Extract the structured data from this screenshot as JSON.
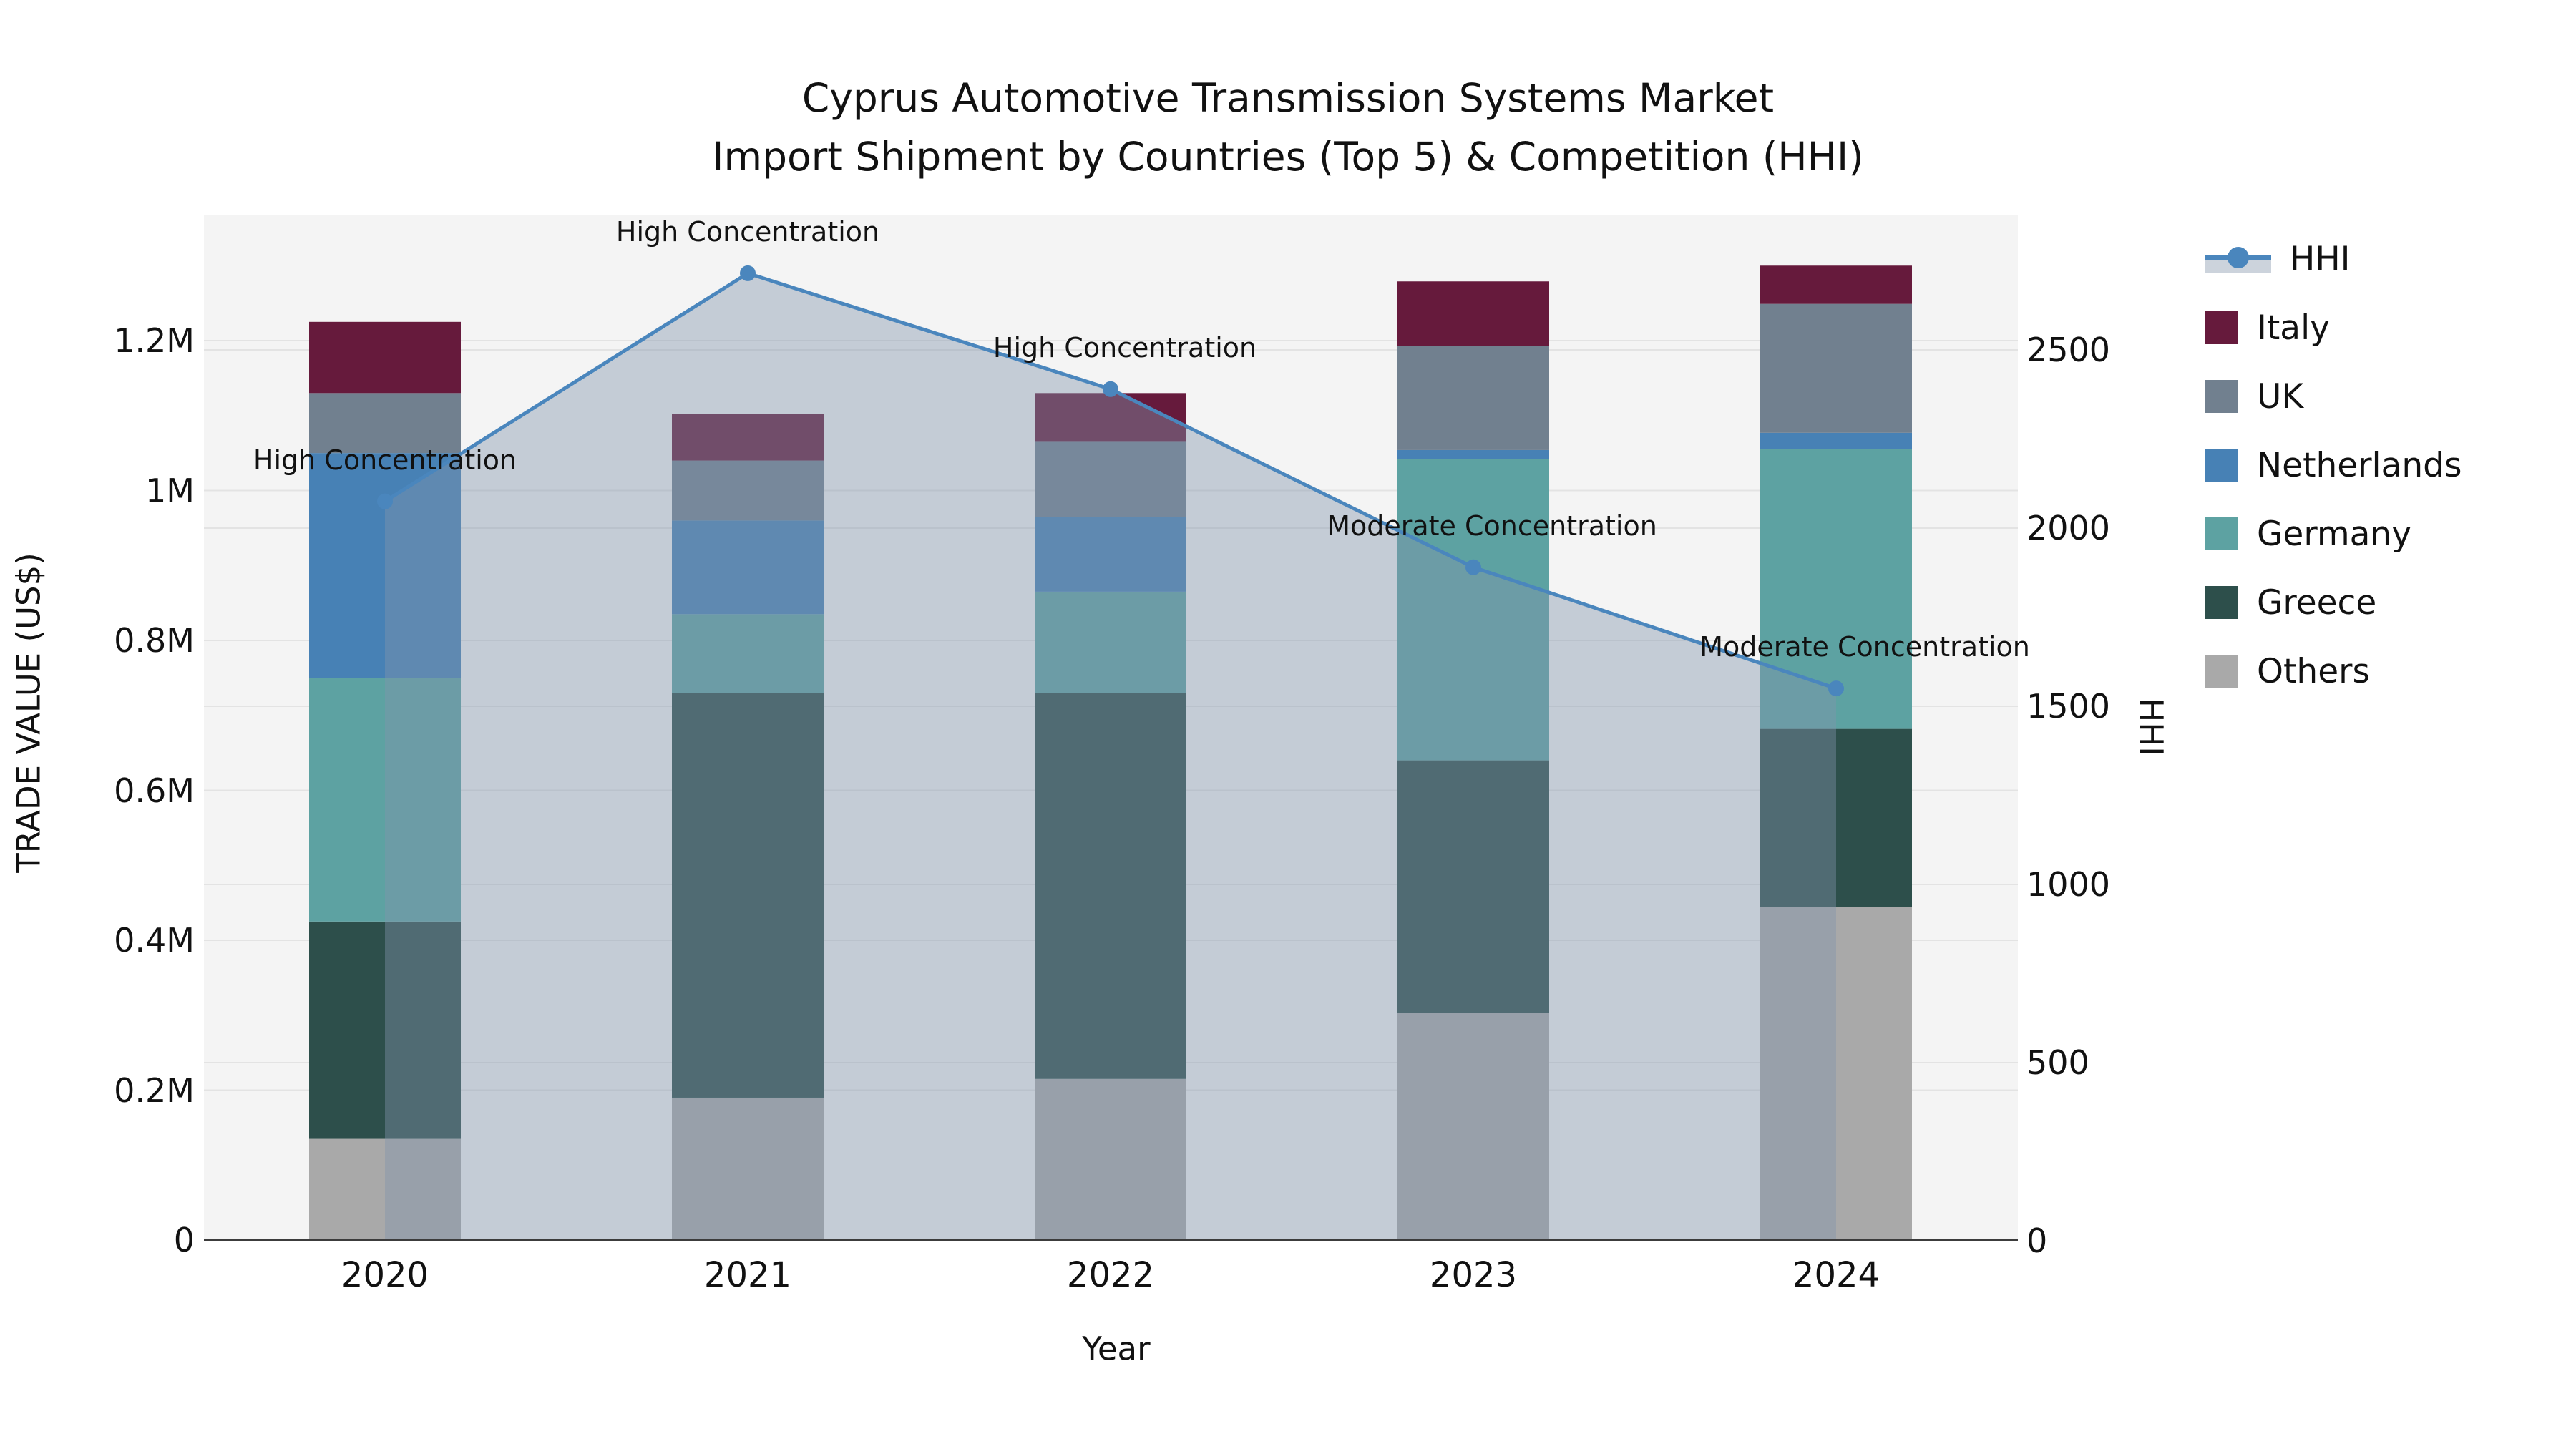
{
  "title": {
    "line1": "Cyprus Automotive Transmission Systems Market",
    "line2": "Import Shipment by Countries (Top 5) & Competition (HHI)"
  },
  "axes": {
    "x": {
      "label": "Year",
      "ticks": [
        "2020",
        "2021",
        "2022",
        "2023",
        "2024"
      ]
    },
    "y_left": {
      "label": "TRADE VALUE (US$)",
      "ticks": [
        {
          "label": "0",
          "value": 0
        },
        {
          "label": "0.2M",
          "value": 0.2
        },
        {
          "label": "0.4M",
          "value": 0.4
        },
        {
          "label": "0.6M",
          "value": 0.6
        },
        {
          "label": "0.8M",
          "value": 0.8
        },
        {
          "label": "1M",
          "value": 1.0
        },
        {
          "label": "1.2M",
          "value": 1.2
        }
      ]
    },
    "y_right": {
      "label": "HHI",
      "ticks": [
        {
          "label": "0",
          "value": 0
        },
        {
          "label": "500",
          "value": 500
        },
        {
          "label": "1000",
          "value": 1000
        },
        {
          "label": "1500",
          "value": 1500
        },
        {
          "label": "2000",
          "value": 2000
        },
        {
          "label": "2500",
          "value": 2500
        }
      ]
    }
  },
  "legend": {
    "items": [
      {
        "label": "HHI",
        "type": "line",
        "color": "#4a86bd"
      },
      {
        "label": "Italy",
        "type": "patch",
        "color": "#661a3c"
      },
      {
        "label": "UK",
        "type": "patch",
        "color": "#71808f"
      },
      {
        "label": "Netherlands",
        "type": "patch",
        "color": "#4781b5"
      },
      {
        "label": "Germany",
        "type": "patch",
        "color": "#5da2a2"
      },
      {
        "label": "Greece",
        "type": "patch",
        "color": "#2d4f4b"
      },
      {
        "label": "Others",
        "type": "patch",
        "color": "#a9a9a9"
      }
    ]
  },
  "chart_data": {
    "type": "stacked-bar+line",
    "title": "Cyprus Automotive Transmission Systems Market — Import Shipment by Countries (Top 5) & Competition (HHI)",
    "categories": [
      "2020",
      "2021",
      "2022",
      "2023",
      "2024"
    ],
    "value_unit": "US$ millions",
    "series": [
      {
        "name": "Others",
        "color": "#a9a9a9",
        "values": [
          0.135,
          0.19,
          0.215,
          0.303,
          0.444
        ]
      },
      {
        "name": "Greece",
        "color": "#2d4f4b",
        "values": [
          0.29,
          0.54,
          0.515,
          0.337,
          0.238
        ]
      },
      {
        "name": "Germany",
        "color": "#5da2a2",
        "values": [
          0.325,
          0.105,
          0.135,
          0.402,
          0.373
        ]
      },
      {
        "name": "Netherlands",
        "color": "#4781b5",
        "values": [
          0.3,
          0.125,
          0.1,
          0.012,
          0.022
        ]
      },
      {
        "name": "UK",
        "color": "#71808f",
        "values": [
          0.08,
          0.08,
          0.1,
          0.139,
          0.172
        ]
      },
      {
        "name": "Italy",
        "color": "#661a3c",
        "values": [
          0.095,
          0.062,
          0.065,
          0.086,
          0.051
        ]
      }
    ],
    "bar_totals": [
      1.225,
      1.102,
      1.13,
      1.279,
      1.3
    ],
    "line_series": {
      "name": "HHI",
      "axis": "right",
      "color": "#4a86bd",
      "area_fill": "rgba(128,148,172,0.42)",
      "values": [
        2075,
        2715,
        2390,
        1890,
        1550
      ]
    },
    "annotations": [
      {
        "category": "2020",
        "text": "High Concentration"
      },
      {
        "category": "2021",
        "text": "High Concentration"
      },
      {
        "category": "2022",
        "text": "High Concentration"
      },
      {
        "category": "2023",
        "text": "Moderate Concentration"
      },
      {
        "category": "2024",
        "text": "Moderate Concentration"
      }
    ],
    "xlabel": "Year",
    "ylabel_left": "TRADE VALUE (US$)",
    "ylabel_right": "HHI",
    "ylim_left": [
      0,
      1.37
    ],
    "ylim_right": [
      0,
      2880
    ],
    "grid": true,
    "legend_position": "right",
    "plot_bg": "#f4f4f4",
    "grid_color": "#e3e3e3",
    "axis_line_color": "#3c3c3c"
  }
}
